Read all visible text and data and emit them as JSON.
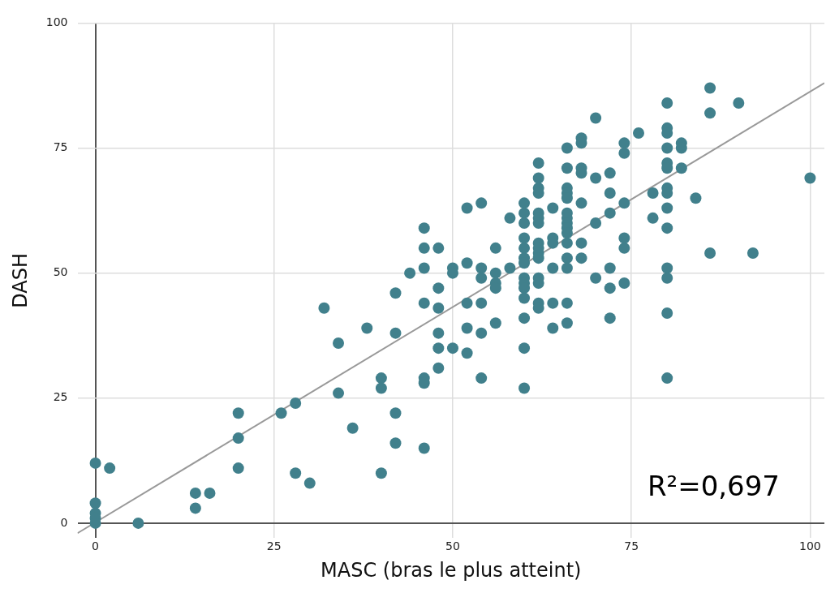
{
  "chart_data": {
    "type": "scatter",
    "xlabel": "MASC (bras le plus atteint)",
    "ylabel": "DASH",
    "xlim": [
      -2.5,
      102
    ],
    "ylim": [
      -3,
      100
    ],
    "xticks": [
      0,
      25,
      50,
      75,
      100
    ],
    "yticks": [
      0,
      25,
      50,
      75,
      100
    ],
    "grid": true,
    "legend": false,
    "annotations": [
      "R²=0,697"
    ],
    "series": [
      {
        "marker": "circle",
        "color": "#41808c",
        "x": [
          0,
          0,
          0,
          0,
          0,
          2,
          6,
          14,
          14,
          16,
          20,
          20,
          20,
          26,
          28,
          28,
          30,
          32,
          34,
          34,
          36,
          38,
          40,
          40,
          40,
          42,
          42,
          42,
          42,
          44,
          46,
          46,
          46,
          46,
          46,
          46,
          46,
          48,
          48,
          48,
          48,
          48,
          48,
          50,
          50,
          50,
          52,
          52,
          52,
          52,
          52,
          54,
          54,
          54,
          54,
          54,
          54,
          56,
          56,
          56,
          56,
          56,
          58,
          58,
          60,
          60,
          60,
          60,
          60,
          60,
          60,
          60,
          60,
          60,
          60,
          60,
          60,
          60,
          62,
          62,
          62,
          62,
          62,
          62,
          62,
          62,
          62,
          62,
          62,
          62,
          62,
          62,
          62,
          64,
          64,
          64,
          64,
          64,
          64,
          66,
          66,
          66,
          66,
          66,
          66,
          66,
          66,
          66,
          66,
          66,
          66,
          66,
          66,
          66,
          68,
          68,
          68,
          68,
          68,
          68,
          68,
          70,
          70,
          70,
          70,
          72,
          72,
          72,
          72,
          72,
          72,
          74,
          74,
          74,
          74,
          74,
          74,
          76,
          78,
          78,
          80,
          80,
          80,
          80,
          80,
          80,
          80,
          80,
          80,
          80,
          80,
          80,
          80,
          80,
          82,
          82,
          82,
          84,
          86,
          86,
          86,
          90,
          92,
          100
        ],
        "values": [
          12,
          4,
          2,
          1,
          0,
          11,
          0,
          6,
          3,
          6,
          22,
          17,
          11,
          22,
          24,
          10,
          8,
          43,
          36,
          26,
          19,
          39,
          29,
          27,
          10,
          46,
          38,
          22,
          16,
          50,
          59,
          55,
          51,
          44,
          29,
          28,
          15,
          55,
          47,
          43,
          38,
          35,
          31,
          51,
          50,
          35,
          63,
          52,
          44,
          39,
          34,
          64,
          51,
          49,
          44,
          38,
          29,
          55,
          50,
          48,
          47,
          40,
          61,
          51,
          64,
          62,
          60,
          57,
          55,
          53,
          52,
          49,
          48,
          47,
          45,
          41,
          35,
          27,
          72,
          69,
          67,
          66,
          62,
          61,
          60,
          56,
          55,
          54,
          53,
          49,
          48,
          44,
          43,
          63,
          57,
          56,
          51,
          44,
          39,
          75,
          71,
          67,
          66,
          65,
          62,
          61,
          60,
          59,
          58,
          56,
          53,
          51,
          44,
          40,
          77,
          76,
          71,
          70,
          64,
          56,
          53,
          81,
          69,
          60,
          49,
          70,
          66,
          62,
          51,
          47,
          41,
          76,
          74,
          64,
          57,
          55,
          48,
          78,
          66,
          61,
          84,
          79,
          78,
          75,
          72,
          71,
          67,
          66,
          63,
          59,
          51,
          49,
          42,
          29,
          76,
          75,
          71,
          65,
          87,
          82,
          54,
          84,
          54,
          69
        ]
      },
      {
        "type": "line",
        "marker": "none",
        "color": "#999999",
        "x": [
          -2.5,
          102
        ],
        "values": [
          -2,
          88
        ]
      }
    ]
  }
}
